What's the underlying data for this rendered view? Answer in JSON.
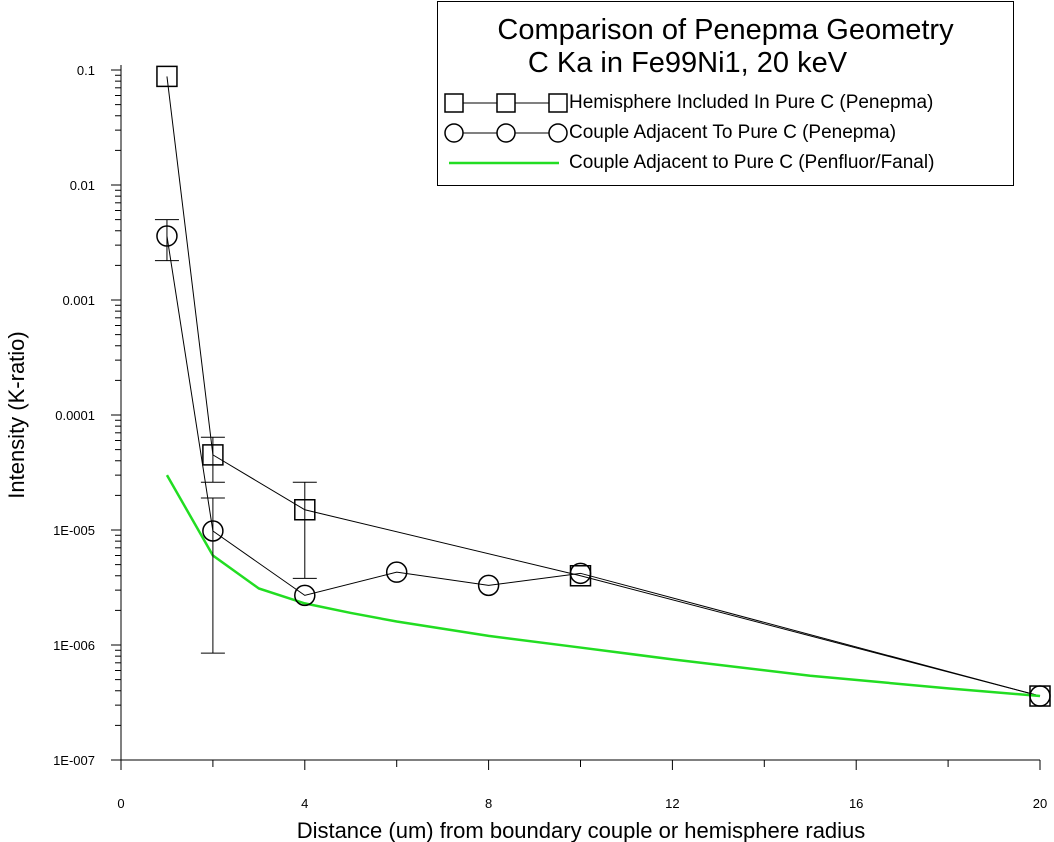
{
  "chart_data": {
    "type": "line",
    "title_lines": [
      "Comparison of Penepma Geometry",
      "C Ka in Fe99Ni1, 20 keV"
    ],
    "xlabel": "Distance (um) from boundary couple or hemisphere radius",
    "ylabel": "Intensity (K-ratio)",
    "xlim": [
      0,
      20
    ],
    "ylim": [
      1e-07,
      0.1
    ],
    "yscale": "log",
    "x_ticks": [
      0,
      4,
      8,
      12,
      16,
      20
    ],
    "x_tick_labels": [
      "0",
      "4",
      "8",
      "12",
      "16",
      "20"
    ],
    "y_ticks": [
      1e-07,
      1e-06,
      1e-05,
      0.0001,
      0.001,
      0.01,
      0.1
    ],
    "y_tick_labels": [
      "1E-007",
      "1E-006",
      "1E-005",
      "0.0001",
      "0.001",
      "0.01",
      "0.1"
    ],
    "legend_position": "top-right",
    "series": [
      {
        "name": "Hemisphere Included In Pure C (Penepma)",
        "marker": "square",
        "color": "#000000",
        "points": [
          {
            "x": 1,
            "y": 0.088
          },
          {
            "x": 2,
            "y": 4.5e-05,
            "err_low": 2.6e-05,
            "err_high": 6.4e-05
          },
          {
            "x": 4,
            "y": 1.5e-05,
            "err_low": 3.8e-06,
            "err_high": 2.6e-05
          },
          {
            "x": 10,
            "y": 4e-06
          },
          {
            "x": 20,
            "y": 3.6e-07
          }
        ]
      },
      {
        "name": "Couple Adjacent To Pure C (Penepma)",
        "marker": "circle",
        "color": "#000000",
        "points": [
          {
            "x": 1,
            "y": 0.0036,
            "err_low": 0.0022,
            "err_high": 0.005
          },
          {
            "x": 2,
            "y": 9.8e-06,
            "err_low": 8.5e-07,
            "err_high": 1.9e-05
          },
          {
            "x": 4,
            "y": 2.7e-06
          },
          {
            "x": 6,
            "y": 4.3e-06
          },
          {
            "x": 8,
            "y": 3.3e-06
          },
          {
            "x": 10,
            "y": 4.2e-06
          },
          {
            "x": 20,
            "y": 3.6e-07
          }
        ]
      },
      {
        "name": "Couple Adjacent to Pure C (Penfluor/Fanal)",
        "marker": "none",
        "color": "#22dd22",
        "points": [
          {
            "x": 1,
            "y": 3e-05
          },
          {
            "x": 2,
            "y": 6e-06
          },
          {
            "x": 3,
            "y": 3.1e-06
          },
          {
            "x": 4,
            "y": 2.3e-06
          },
          {
            "x": 5,
            "y": 1.9e-06
          },
          {
            "x": 6,
            "y": 1.6e-06
          },
          {
            "x": 8,
            "y": 1.2e-06
          },
          {
            "x": 10,
            "y": 9.5e-07
          },
          {
            "x": 12,
            "y": 7.5e-07
          },
          {
            "x": 15,
            "y": 5.4e-07
          },
          {
            "x": 18,
            "y": 4.2e-07
          },
          {
            "x": 20,
            "y": 3.6e-07
          }
        ]
      }
    ]
  }
}
